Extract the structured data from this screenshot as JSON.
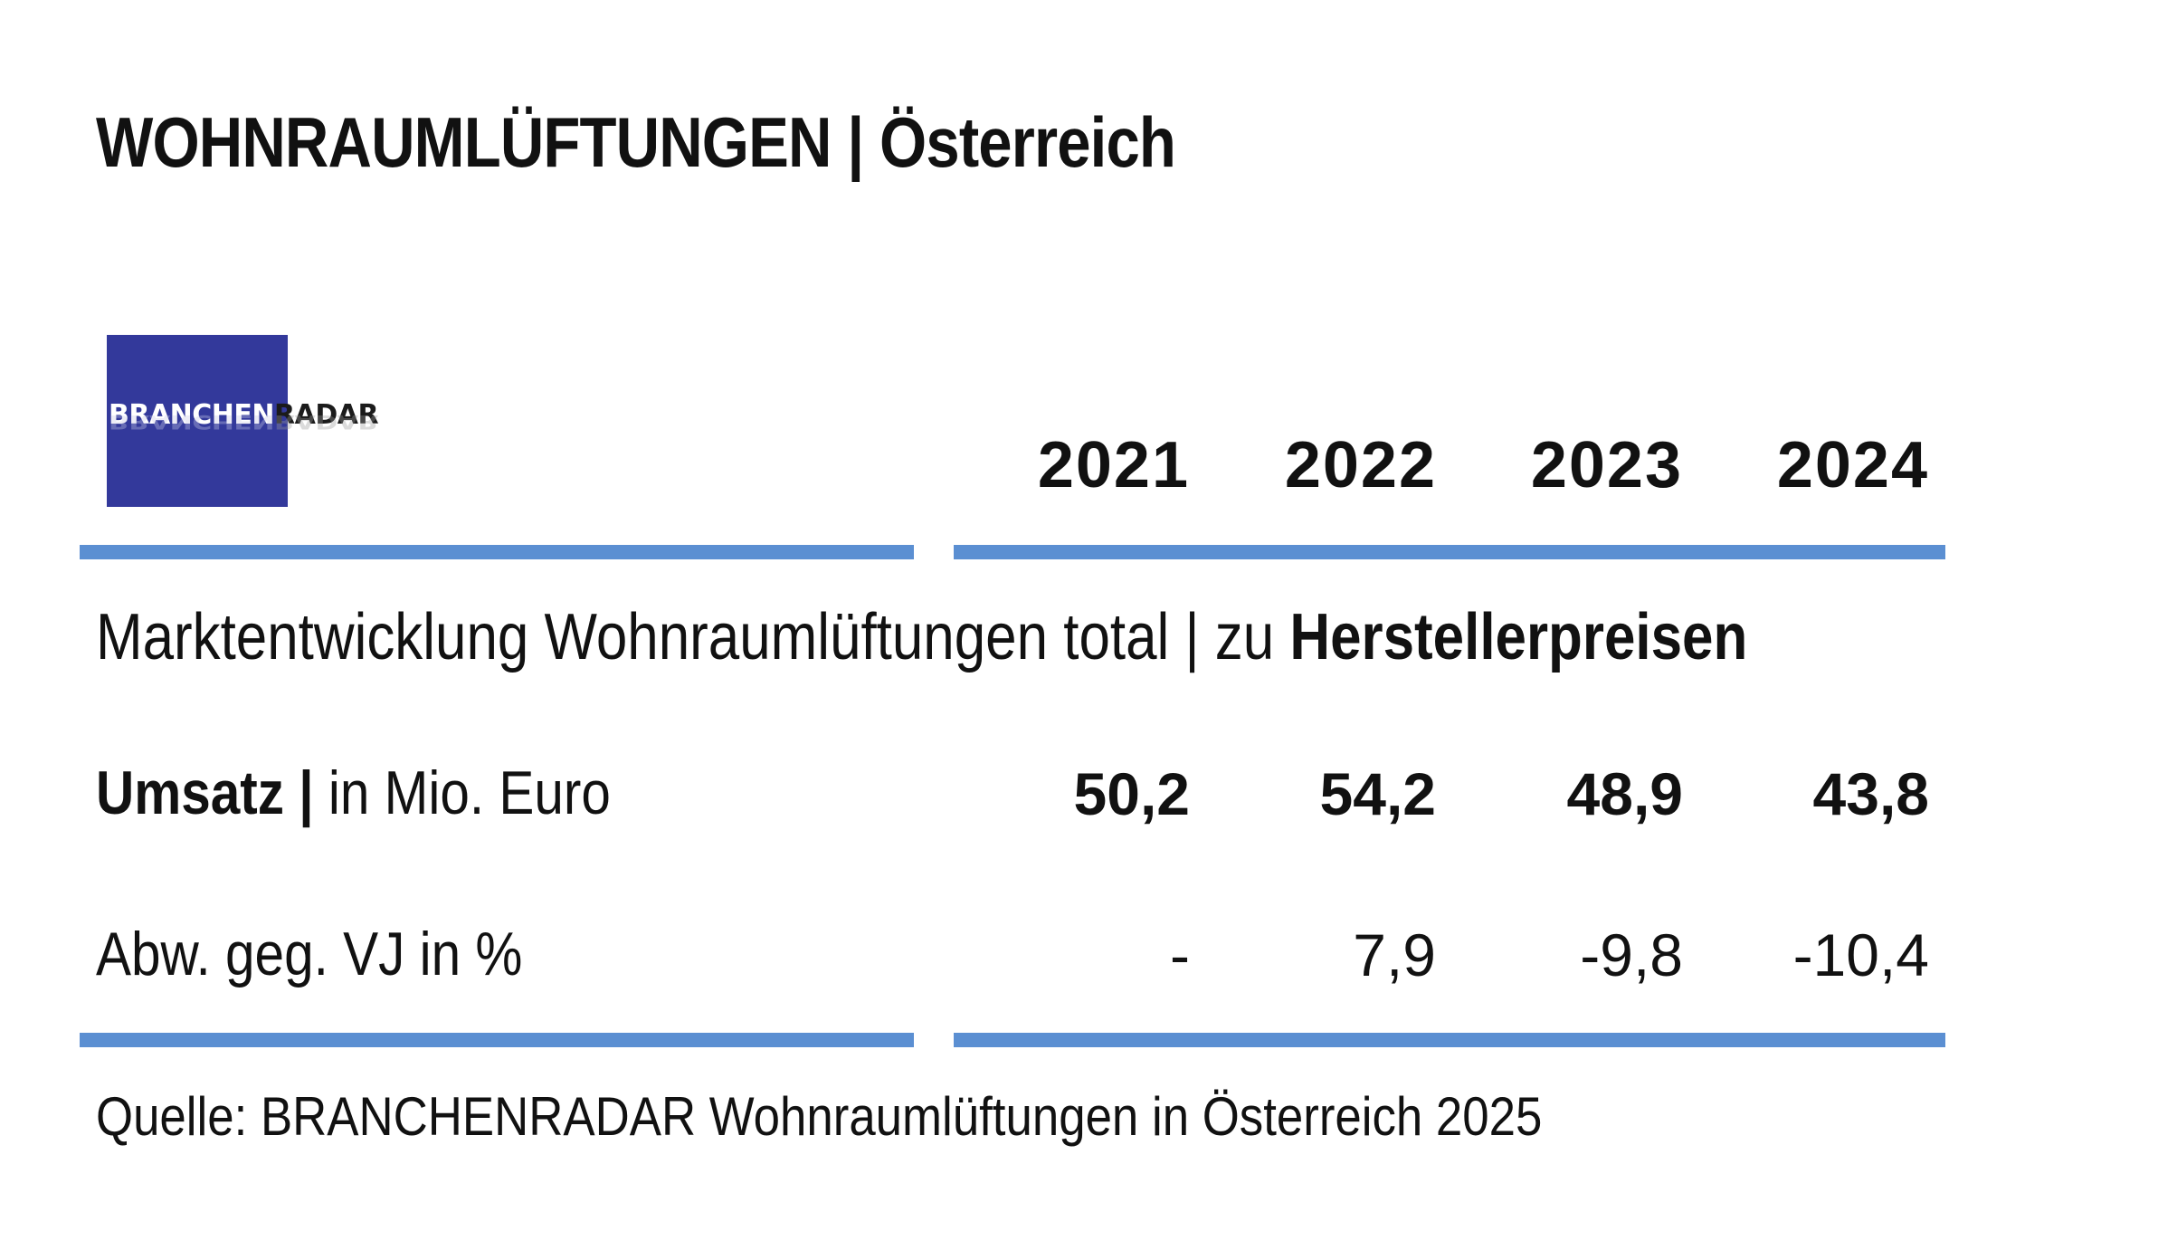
{
  "title": {
    "bold": "WOHNRAUMLÜFTUNGEN",
    "separator": "|",
    "region": "Österreich"
  },
  "logo": {
    "part1": "BRANCHEN",
    "part2": "RADAR",
    "color": "#33399b"
  },
  "accent_color": "#5b8fd2",
  "years": [
    "2021",
    "2022",
    "2023",
    "2024"
  ],
  "subtitle": {
    "regular": "Marktentwicklung Wohnraumlüftungen total | zu ",
    "emphasis": "Herstellerpreisen"
  },
  "rows": [
    {
      "label_bold": "Umsatz |",
      "label_regular": " in Mio. Euro",
      "values": [
        "50,2",
        "54,2",
        "48,9",
        "43,8"
      ]
    },
    {
      "label_bold": "",
      "label_regular": "Abw. geg. VJ in %",
      "values": [
        "-",
        "7,9",
        "-9,8",
        "-10,4"
      ]
    }
  ],
  "source": "Quelle: BRANCHENRADAR Wohnraumlüftungen in Österreich 2025"
}
